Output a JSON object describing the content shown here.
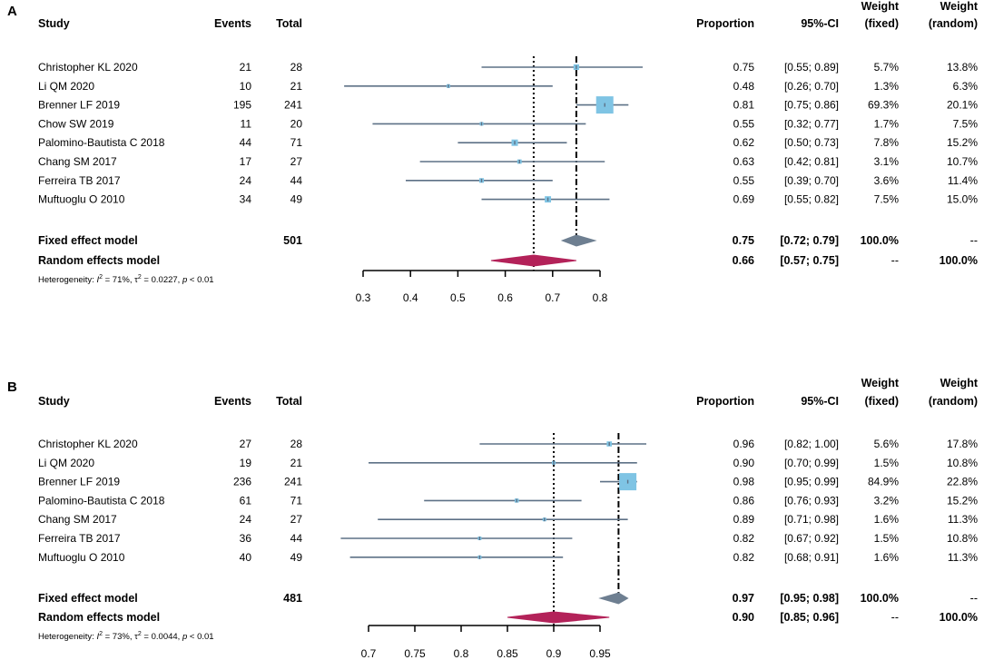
{
  "colors": {
    "ci_line": "#5d7186",
    "study_box": "#7fc4e4",
    "fixed_diamond": "#6e7f91",
    "random_diamond": "#b32259",
    "text": "#000000"
  },
  "chart_data": [
    {
      "type": "forest",
      "panel_label": "A",
      "columns": {
        "study": "Study",
        "events": "Events",
        "total": "Total",
        "proportion": "Proportion",
        "ci": "95%-CI",
        "weight_fixed": [
          "Weight",
          "(fixed)"
        ],
        "weight_random": [
          "Weight",
          "(random)"
        ]
      },
      "studies": [
        {
          "name": "Christopher KL 2020",
          "events": "21",
          "total": "28",
          "proportion": 0.75,
          "lower": 0.55,
          "upper": 0.89,
          "proportion_text": "0.75",
          "ci_text": "[0.55; 0.89]",
          "weight_fixed": "5.7%",
          "weight_random": "13.8%"
        },
        {
          "name": "Li QM 2020",
          "events": "10",
          "total": "21",
          "proportion": 0.48,
          "lower": 0.26,
          "upper": 0.7,
          "proportion_text": "0.48",
          "ci_text": "[0.26; 0.70]",
          "weight_fixed": "1.3%",
          "weight_random": "6.3%"
        },
        {
          "name": "Brenner LF 2019",
          "events": "195",
          "total": "241",
          "proportion": 0.81,
          "lower": 0.75,
          "upper": 0.86,
          "proportion_text": "0.81",
          "ci_text": "[0.75; 0.86]",
          "weight_fixed": "69.3%",
          "weight_random": "20.1%"
        },
        {
          "name": "Chow SW 2019",
          "events": "11",
          "total": "20",
          "proportion": 0.55,
          "lower": 0.32,
          "upper": 0.77,
          "proportion_text": "0.55",
          "ci_text": "[0.32; 0.77]",
          "weight_fixed": "1.7%",
          "weight_random": "7.5%"
        },
        {
          "name": "Palomino-Bautista C 2018",
          "events": "44",
          "total": "71",
          "proportion": 0.62,
          "lower": 0.5,
          "upper": 0.73,
          "proportion_text": "0.62",
          "ci_text": "[0.50; 0.73]",
          "weight_fixed": "7.8%",
          "weight_random": "15.2%"
        },
        {
          "name": "Chang SM 2017",
          "events": "17",
          "total": "27",
          "proportion": 0.63,
          "lower": 0.42,
          "upper": 0.81,
          "proportion_text": "0.63",
          "ci_text": "[0.42; 0.81]",
          "weight_fixed": "3.1%",
          "weight_random": "10.7%"
        },
        {
          "name": "Ferreira TB 2017",
          "events": "24",
          "total": "44",
          "proportion": 0.55,
          "lower": 0.39,
          "upper": 0.7,
          "proportion_text": "0.55",
          "ci_text": "[0.39; 0.70]",
          "weight_fixed": "3.6%",
          "weight_random": "11.4%"
        },
        {
          "name": "Muftuoglu O 2010",
          "events": "34",
          "total": "49",
          "proportion": 0.69,
          "lower": 0.55,
          "upper": 0.82,
          "proportion_text": "0.69",
          "ci_text": "[0.55; 0.82]",
          "weight_fixed": "7.5%",
          "weight_random": "15.0%"
        }
      ],
      "fixed": {
        "label": "Fixed effect model",
        "total": "501",
        "estimate": 0.75,
        "lower": 0.72,
        "upper": 0.79,
        "proportion_text": "0.75",
        "ci_text": "[0.72; 0.79]",
        "weight_fixed": "100.0%",
        "weight_random": "--"
      },
      "random": {
        "label": "Random effects model",
        "estimate": 0.66,
        "lower": 0.57,
        "upper": 0.75,
        "proportion_text": "0.66",
        "ci_text": "[0.57; 0.75]",
        "weight_fixed": "--",
        "weight_random": "100.0%"
      },
      "heterogeneity": {
        "prefix": "Heterogeneity: ",
        "i2_label": "I",
        "i2_sup": "2",
        "i2_value": " = 71%, ",
        "tau_label": "τ",
        "tau_sup": "2",
        "tau_value": " = 0.0227, ",
        "p_label": "p",
        "p_value": " < 0.01"
      },
      "x_axis": {
        "min": 0.3,
        "max": 0.8,
        "ticks": [
          0.3,
          0.4,
          0.5,
          0.6,
          0.7,
          0.8
        ],
        "tick_labels": [
          "0.3",
          "0.4",
          "0.5",
          "0.6",
          "0.7",
          "0.8"
        ]
      }
    },
    {
      "type": "forest",
      "panel_label": "B",
      "columns": {
        "study": "Study",
        "events": "Events",
        "total": "Total",
        "proportion": "Proportion",
        "ci": "95%-CI",
        "weight_fixed": [
          "Weight",
          "(fixed)"
        ],
        "weight_random": [
          "Weight",
          "(random)"
        ]
      },
      "studies": [
        {
          "name": "Christopher KL 2020",
          "events": "27",
          "total": "28",
          "proportion": 0.96,
          "lower": 0.82,
          "upper": 1.0,
          "proportion_text": "0.96",
          "ci_text": "[0.82; 1.00]",
          "weight_fixed": "5.6%",
          "weight_random": "17.8%"
        },
        {
          "name": "Li QM 2020",
          "events": "19",
          "total": "21",
          "proportion": 0.9,
          "lower": 0.7,
          "upper": 0.99,
          "proportion_text": "0.90",
          "ci_text": "[0.70; 0.99]",
          "weight_fixed": "1.5%",
          "weight_random": "10.8%"
        },
        {
          "name": "Brenner LF 2019",
          "events": "236",
          "total": "241",
          "proportion": 0.98,
          "lower": 0.95,
          "upper": 0.99,
          "proportion_text": "0.98",
          "ci_text": "[0.95; 0.99]",
          "weight_fixed": "84.9%",
          "weight_random": "22.8%"
        },
        {
          "name": "Palomino-Bautista C 2018",
          "events": "61",
          "total": "71",
          "proportion": 0.86,
          "lower": 0.76,
          "upper": 0.93,
          "proportion_text": "0.86",
          "ci_text": "[0.76; 0.93]",
          "weight_fixed": "3.2%",
          "weight_random": "15.2%"
        },
        {
          "name": "Chang SM 2017",
          "events": "24",
          "total": "27",
          "proportion": 0.89,
          "lower": 0.71,
          "upper": 0.98,
          "proportion_text": "0.89",
          "ci_text": "[0.71; 0.98]",
          "weight_fixed": "1.6%",
          "weight_random": "11.3%"
        },
        {
          "name": "Ferreira TB 2017",
          "events": "36",
          "total": "44",
          "proportion": 0.82,
          "lower": 0.67,
          "upper": 0.92,
          "proportion_text": "0.82",
          "ci_text": "[0.67; 0.92]",
          "weight_fixed": "1.5%",
          "weight_random": "10.8%"
        },
        {
          "name": "Muftuoglu O 2010",
          "events": "40",
          "total": "49",
          "proportion": 0.82,
          "lower": 0.68,
          "upper": 0.91,
          "proportion_text": "0.82",
          "ci_text": "[0.68; 0.91]",
          "weight_fixed": "1.6%",
          "weight_random": "11.3%"
        }
      ],
      "fixed": {
        "label": "Fixed effect model",
        "total": "481",
        "estimate": 0.97,
        "lower": 0.95,
        "upper": 0.98,
        "proportion_text": "0.97",
        "ci_text": "[0.95; 0.98]",
        "weight_fixed": "100.0%",
        "weight_random": "--"
      },
      "random": {
        "label": "Random effects model",
        "estimate": 0.9,
        "lower": 0.85,
        "upper": 0.96,
        "proportion_text": "0.90",
        "ci_text": "[0.85; 0.96]",
        "weight_fixed": "--",
        "weight_random": "100.0%"
      },
      "heterogeneity": {
        "prefix": "Heterogeneity: ",
        "i2_label": "I",
        "i2_sup": "2",
        "i2_value": " = 73%, ",
        "tau_label": "τ",
        "tau_sup": "2",
        "tau_value": " = 0.0044, ",
        "p_label": "p",
        "p_value": " < 0.01"
      },
      "x_axis": {
        "min": 0.7,
        "max": 0.95,
        "ticks": [
          0.7,
          0.75,
          0.8,
          0.85,
          0.9,
          0.95
        ],
        "tick_labels": [
          "0.7",
          "0.75",
          "0.8",
          "0.85",
          "0.9",
          "0.95"
        ]
      }
    }
  ]
}
